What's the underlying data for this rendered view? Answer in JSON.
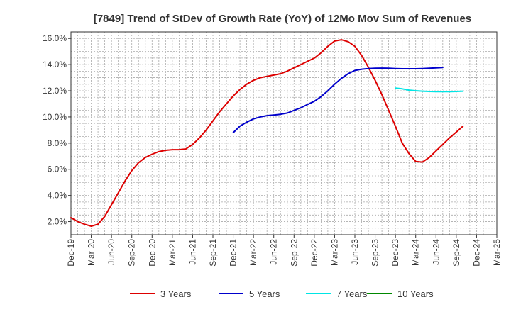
{
  "chart_data": {
    "type": "line",
    "title": "[7849]  Trend of StDev of Growth Rate (YoY) of 12Mo Mov Sum of Revenues",
    "xlabel": "",
    "ylabel": "",
    "ylim": [
      1.0,
      16.5
    ],
    "yticks": [
      2.0,
      4.0,
      6.0,
      8.0,
      10.0,
      12.0,
      14.0,
      16.0
    ],
    "ytick_labels": [
      "2.0%",
      "4.0%",
      "6.0%",
      "8.0%",
      "10.0%",
      "12.0%",
      "14.0%",
      "16.0%"
    ],
    "xlim_months": [
      0,
      63
    ],
    "xticks": [
      {
        "m": 0,
        "label": "Dec-19"
      },
      {
        "m": 3,
        "label": "Mar-20"
      },
      {
        "m": 6,
        "label": "Jun-20"
      },
      {
        "m": 9,
        "label": "Sep-20"
      },
      {
        "m": 12,
        "label": "Dec-20"
      },
      {
        "m": 15,
        "label": "Mar-21"
      },
      {
        "m": 18,
        "label": "Jun-21"
      },
      {
        "m": 21,
        "label": "Sep-21"
      },
      {
        "m": 24,
        "label": "Dec-21"
      },
      {
        "m": 27,
        "label": "Mar-22"
      },
      {
        "m": 30,
        "label": "Jun-22"
      },
      {
        "m": 33,
        "label": "Sep-22"
      },
      {
        "m": 36,
        "label": "Dec-22"
      },
      {
        "m": 39,
        "label": "Mar-23"
      },
      {
        "m": 42,
        "label": "Jun-23"
      },
      {
        "m": 45,
        "label": "Sep-23"
      },
      {
        "m": 48,
        "label": "Dec-23"
      },
      {
        "m": 51,
        "label": "Mar-24"
      },
      {
        "m": 54,
        "label": "Jun-24"
      },
      {
        "m": 57,
        "label": "Sep-24"
      },
      {
        "m": 60,
        "label": "Dec-24"
      },
      {
        "m": 63,
        "label": "Mar-25"
      }
    ],
    "grid": true,
    "legend_position": "bottom",
    "series": [
      {
        "name": "3 Years",
        "color": "#dd0000",
        "start_month": 0,
        "values": [
          2.3,
          2.0,
          1.8,
          1.65,
          1.8,
          2.4,
          3.3,
          4.2,
          5.1,
          5.9,
          6.5,
          6.9,
          7.15,
          7.35,
          7.45,
          7.5,
          7.5,
          7.55,
          7.9,
          8.4,
          9.0,
          9.7,
          10.4,
          11.0,
          11.6,
          12.1,
          12.5,
          12.8,
          13.0,
          13.1,
          13.2,
          13.3,
          13.5,
          13.75,
          14.0,
          14.25,
          14.5,
          14.9,
          15.4,
          15.8,
          15.9,
          15.75,
          15.4,
          14.7,
          13.8,
          12.8,
          11.7,
          10.5,
          9.3,
          8.0,
          7.2,
          6.6,
          6.55,
          6.9,
          7.4,
          7.9,
          8.4,
          8.85,
          9.3
        ]
      },
      {
        "name": "5 Years",
        "color": "#0000cc",
        "start_month": 24,
        "values": [
          8.8,
          9.3,
          9.6,
          9.85,
          10.0,
          10.1,
          10.15,
          10.2,
          10.3,
          10.5,
          10.7,
          10.95,
          11.2,
          11.55,
          12.0,
          12.5,
          12.95,
          13.3,
          13.55,
          13.65,
          13.7,
          13.72,
          13.73,
          13.72,
          13.7,
          13.68,
          13.68,
          13.68,
          13.7,
          13.72,
          13.75,
          13.78
        ]
      },
      {
        "name": "7 Years",
        "color": "#00e5e5",
        "start_month": 48,
        "values": [
          12.2,
          12.15,
          12.05,
          12.0,
          11.97,
          11.95,
          11.93,
          11.93,
          11.93,
          11.95,
          11.97
        ]
      },
      {
        "name": "10 Years",
        "color": "#008800",
        "start_month": 60,
        "values": []
      }
    ]
  }
}
